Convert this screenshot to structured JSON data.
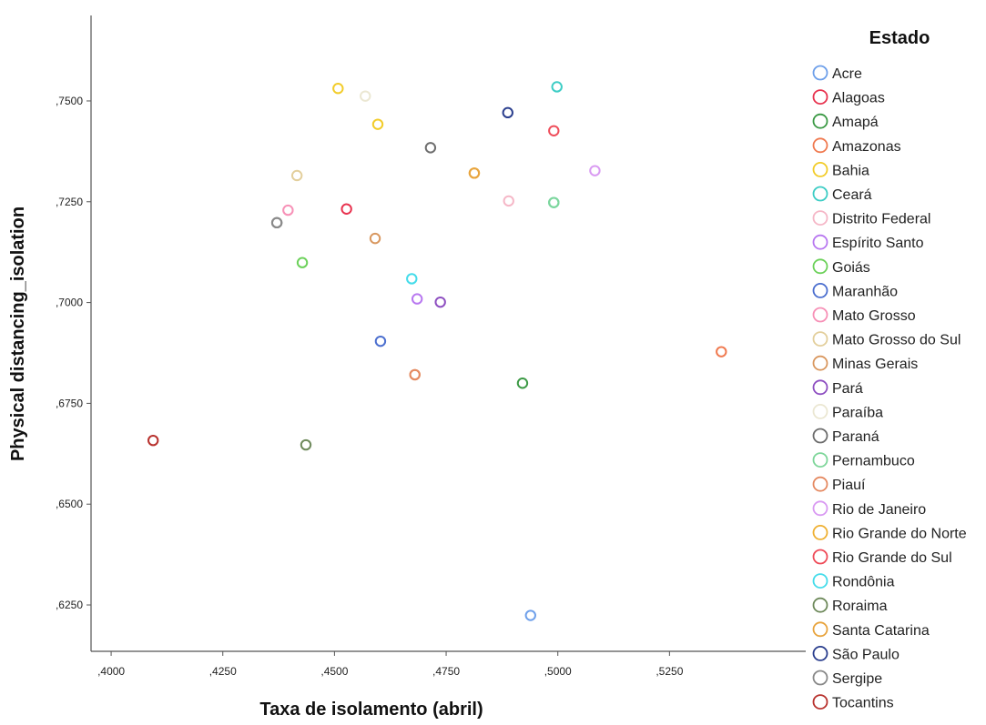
{
  "chart_data": {
    "type": "scatter",
    "title": "",
    "xlabel": "Taxa de isolamento (abril)",
    "ylabel": "Physical distancing_isolation",
    "xlim": [
      0.3955,
      0.5555
    ],
    "ylim": [
      0.6135,
      0.7712
    ],
    "x_ticks": [
      0.4,
      0.425,
      0.45,
      0.475,
      0.5,
      0.525
    ],
    "x_tick_labels": [
      ",4000",
      ",4250",
      ",4500",
      ",4750",
      ",5000",
      ",5250"
    ],
    "y_ticks": [
      0.625,
      0.65,
      0.675,
      0.7,
      0.725,
      0.75
    ],
    "y_tick_labels": [
      ",6250",
      ",6500",
      ",6750",
      ",7000",
      ",7250",
      ",7500"
    ],
    "grid": false,
    "legend": {
      "title": "Estado",
      "placement": "right"
    },
    "series": [
      {
        "name": "Acre",
        "color": "#6fa0ea",
        "x": [
          0.4939
        ],
        "y": [
          0.6224
        ]
      },
      {
        "name": "Alagoas",
        "color": "#e8334f",
        "x": [
          0.4527
        ],
        "y": [
          0.7232
        ]
      },
      {
        "name": "Amapá",
        "color": "#3d9a46",
        "x": [
          0.4921
        ],
        "y": [
          0.68
        ]
      },
      {
        "name": "Amazonas",
        "color": "#f07a50",
        "x": [
          0.5366
        ],
        "y": [
          0.6878
        ]
      },
      {
        "name": "Bahia",
        "color": "#f2cc2a",
        "x": [
          0.4508,
          0.4597
        ],
        "y": [
          0.7531,
          0.7442
        ]
      },
      {
        "name": "Ceará",
        "color": "#3ecdc5",
        "x": [
          0.4998,
          0.4991
        ],
        "y": [
          0.7535,
          0.7248
        ]
      },
      {
        "name": "Distrito Federal",
        "color": "#f5b7c7",
        "x": [
          0.489
        ],
        "y": [
          0.7252
        ]
      },
      {
        "name": "Espírito Santo",
        "color": "#b878f0",
        "x": [
          0.4685
        ],
        "y": [
          0.7009
        ]
      },
      {
        "name": "Goiás",
        "color": "#6cd15a",
        "x": [
          0.4428
        ],
        "y": [
          0.7099
        ]
      },
      {
        "name": "Maranhão",
        "color": "#4c6fcf",
        "x": [
          0.4603
        ],
        "y": [
          0.6904
        ]
      },
      {
        "name": "Mato Grosso",
        "color": "#f791b7",
        "x": [
          0.4396
        ],
        "y": [
          0.7229
        ]
      },
      {
        "name": "Mato Grosso do Sul",
        "color": "#e3cf9c",
        "x": [
          0.4416
        ],
        "y": [
          0.7315
        ]
      },
      {
        "name": "Minas Gerais",
        "color": "#d99860",
        "x": [
          0.4591,
          0.468
        ],
        "y": [
          0.7159,
          0.6821
        ]
      },
      {
        "name": "Pará",
        "color": "#8e4fc1",
        "x": [
          0.4737
        ],
        "y": [
          0.7001
        ]
      },
      {
        "name": "Paraíba",
        "color": "#ebe7d2",
        "x": [
          0.4569
        ],
        "y": [
          0.7512
        ]
      },
      {
        "name": "Paraná",
        "color": "#6e6e6e",
        "x": [
          0.4715,
          0.4371
        ],
        "y": [
          0.7384,
          0.7198
        ]
      },
      {
        "name": "Pernambuco",
        "color": "#7ed69a",
        "x": [
          0.4991
        ],
        "y": [
          0.7248
        ]
      },
      {
        "name": "Piauí",
        "color": "#e58a62",
        "x": [
          0.468
        ],
        "y": [
          0.6821
        ]
      },
      {
        "name": "Rio de Janeiro",
        "color": "#d99af2",
        "x": [
          0.5083
        ],
        "y": [
          0.7327
        ]
      },
      {
        "name": "Rio Grande do Norte",
        "color": "#efb134",
        "x": [
          0.4813
        ],
        "y": [
          0.7321
        ]
      },
      {
        "name": "Rio Grande do Sul",
        "color": "#ef4d5a",
        "x": [
          0.4991
        ],
        "y": [
          0.7426
        ]
      },
      {
        "name": "Rondônia",
        "color": "#45dcea",
        "x": [
          0.4673
        ],
        "y": [
          0.7059
        ]
      },
      {
        "name": "Roraima",
        "color": "#6f8a5c",
        "x": [
          0.4436
        ],
        "y": [
          0.6647
        ]
      },
      {
        "name": "Santa Catarina",
        "color": "#e8a43e",
        "x": [
          0.4813
        ],
        "y": [
          0.7321
        ]
      },
      {
        "name": "São Paulo",
        "color": "#2b3f8e",
        "x": [
          0.4888
        ],
        "y": [
          0.7471
        ]
      },
      {
        "name": "Sergipe",
        "color": "#8a8a8a",
        "x": [
          0.4371
        ],
        "y": [
          0.7198
        ]
      },
      {
        "name": "Tocantins",
        "color": "#b8322e",
        "x": [
          0.4094
        ],
        "y": [
          0.6658
        ]
      }
    ]
  }
}
